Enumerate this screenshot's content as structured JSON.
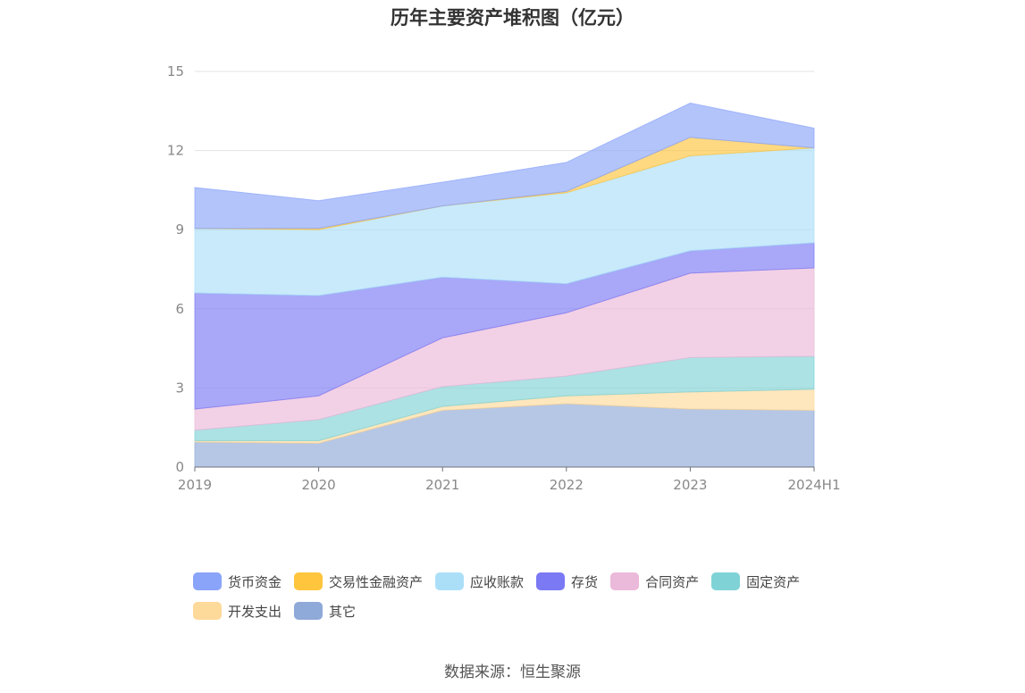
{
  "title": "历年主要资产堆积图（亿元）",
  "source": "数据来源：恒生聚源",
  "chart_data": {
    "type": "area",
    "stacked": true,
    "categories": [
      "2019",
      "2020",
      "2021",
      "2022",
      "2023",
      "2024H1"
    ],
    "ylim": [
      0,
      15
    ],
    "yticks": [
      0,
      3,
      6,
      9,
      12,
      15
    ],
    "grid": true,
    "legend_position": "bottom",
    "series": [
      {
        "name": "其它",
        "color": "#8fa9d8",
        "values": [
          0.95,
          0.9,
          2.15,
          2.4,
          2.2,
          2.15
        ]
      },
      {
        "name": "开发支出",
        "color": "#fdd99a",
        "values": [
          0.05,
          0.1,
          0.15,
          0.3,
          0.65,
          0.8
        ]
      },
      {
        "name": "固定资产",
        "color": "#7fd3d6",
        "values": [
          0.4,
          0.8,
          0.75,
          0.75,
          1.3,
          1.25
        ]
      },
      {
        "name": "合同资产",
        "color": "#ebb9d9",
        "values": [
          0.8,
          0.9,
          1.85,
          2.4,
          3.2,
          3.35
        ]
      },
      {
        "name": "存货",
        "color": "#7b79f4",
        "values": [
          4.4,
          3.8,
          2.3,
          1.1,
          0.85,
          0.95
        ]
      },
      {
        "name": "应收账款",
        "color": "#abdff8",
        "values": [
          2.45,
          2.5,
          2.7,
          3.45,
          3.6,
          3.6
        ]
      },
      {
        "name": "交易性金融资产",
        "color": "#ffc53d",
        "values": [
          0.0,
          0.05,
          0.0,
          0.05,
          0.7,
          0.0
        ]
      },
      {
        "name": "货币资金",
        "color": "#8aa4f9",
        "values": [
          1.55,
          1.05,
          0.9,
          1.1,
          1.3,
          0.75
        ]
      }
    ],
    "legend": [
      {
        "name": "货币资金",
        "color": "#8aa4f9"
      },
      {
        "name": "交易性金融资产",
        "color": "#ffc53d"
      },
      {
        "name": "应收账款",
        "color": "#abdff8"
      },
      {
        "name": "存货",
        "color": "#7b79f4"
      },
      {
        "name": "合同资产",
        "color": "#ebb9d9"
      },
      {
        "name": "固定资产",
        "color": "#7fd3d6"
      },
      {
        "name": "开发支出",
        "color": "#fdd99a"
      },
      {
        "name": "其它",
        "color": "#8fa9d8"
      }
    ]
  }
}
